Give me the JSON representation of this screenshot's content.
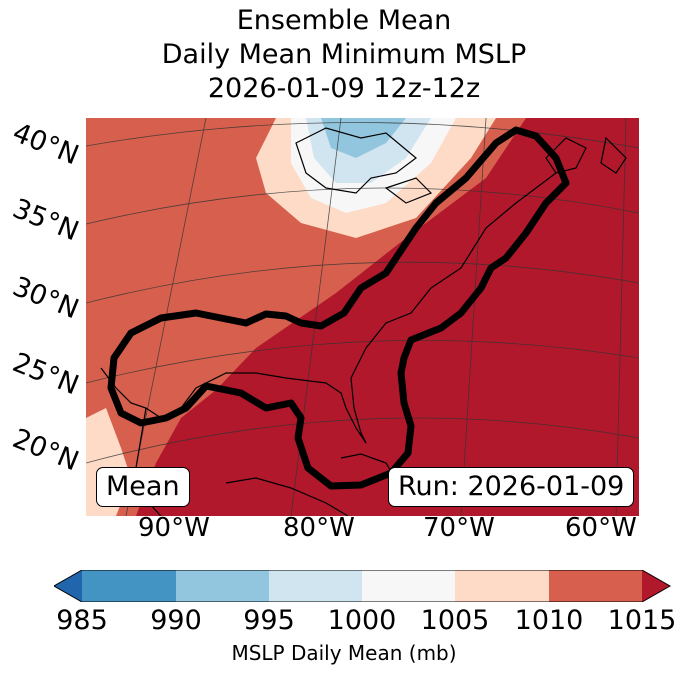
{
  "title": {
    "line1": "Ensemble Mean",
    "line2": "Daily Mean Minimum MSLP",
    "line3": "2026-01-09 12z-12z"
  },
  "lat_labels": [
    "40°N",
    "35°N",
    "30°N",
    "25°N",
    "20°N"
  ],
  "lon_labels": [
    "90°W",
    "80°W",
    "70°W",
    "60°W"
  ],
  "mean_box": "Mean",
  "run_box": "Run: 2026-01-09",
  "colorbar": {
    "label": "MSLP Daily Mean (mb)",
    "ticks": [
      "985",
      "990",
      "995",
      "1000",
      "1005",
      "1010",
      "1015"
    ],
    "colors": [
      "#2166ac",
      "#4393c3",
      "#92c5de",
      "#d1e5f0",
      "#f7f7f7",
      "#fddbc7",
      "#d6604d",
      "#b2182b"
    ]
  }
}
